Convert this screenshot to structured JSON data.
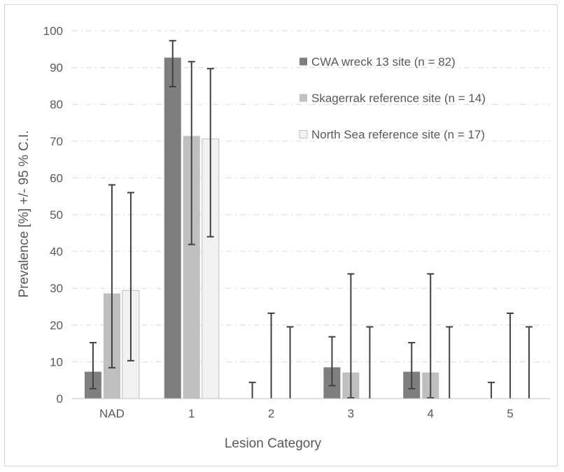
{
  "chart_data": {
    "type": "bar",
    "title": "",
    "xlabel": "Lesion Category",
    "ylabel": "Prevalence [%] +/- 95 % C.I.",
    "ylim": [
      0,
      100
    ],
    "yticks": [
      0,
      10,
      20,
      30,
      40,
      50,
      60,
      70,
      80,
      90,
      100
    ],
    "grid": true,
    "legend_position": "top-right",
    "categories": [
      "NAD",
      "1",
      "2",
      "3",
      "4",
      "5"
    ],
    "series": [
      {
        "name": "CWA wreck 13 site (n = 82)",
        "color": "#7f7f7f",
        "values": [
          7.3,
          92.7,
          0,
          8.5,
          7.3,
          0
        ],
        "ci_low": [
          2.7,
          84.8,
          0,
          3.5,
          2.7,
          0
        ],
        "ci_high": [
          15.2,
          97.3,
          4.4,
          16.8,
          15.2,
          4.4
        ]
      },
      {
        "name": "Skagerrak reference site (n = 14)",
        "color": "#bfbfbf",
        "values": [
          28.6,
          71.4,
          0,
          7.1,
          7.1,
          0
        ],
        "ci_low": [
          8.4,
          41.9,
          0,
          0.2,
          0.2,
          0
        ],
        "ci_high": [
          58.1,
          91.6,
          23.2,
          33.9,
          33.9,
          23.2
        ]
      },
      {
        "name": "North Sea reference site (n = 17)",
        "color": "#f2f2f2",
        "stroke": "#bfbfbf",
        "values": [
          29.4,
          70.6,
          0,
          0,
          0,
          0
        ],
        "ci_low": [
          10.3,
          44.0,
          0,
          0,
          0,
          0
        ],
        "ci_high": [
          56.0,
          89.7,
          19.5,
          19.5,
          19.5,
          19.5
        ]
      }
    ]
  }
}
